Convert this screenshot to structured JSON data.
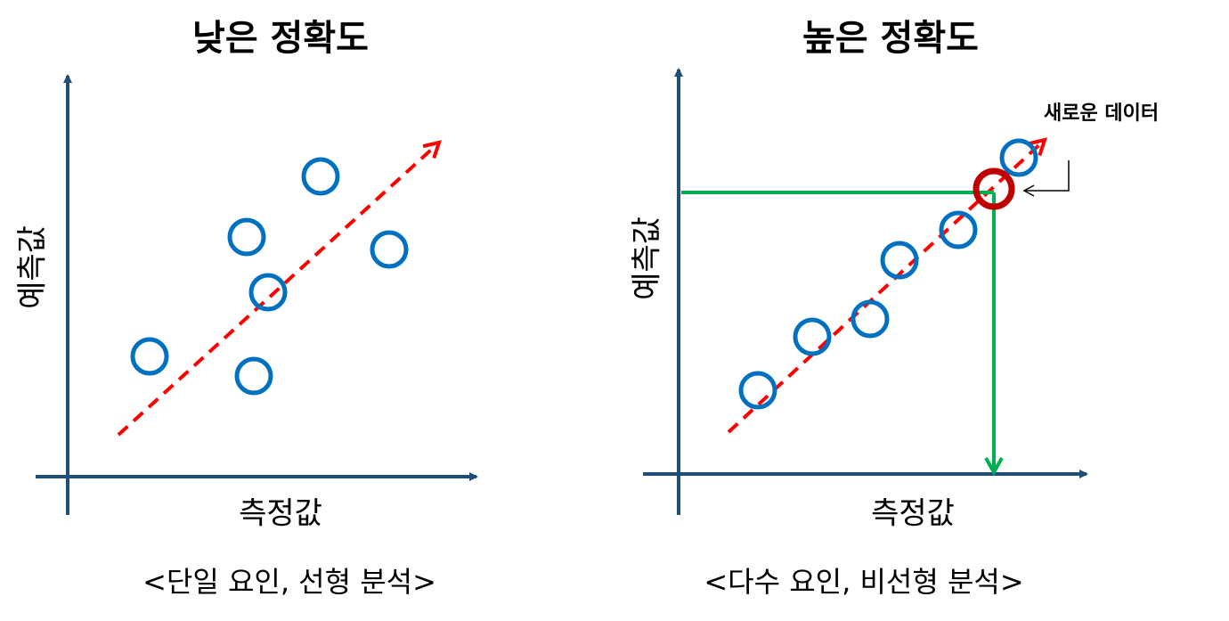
{
  "panels": [
    {
      "title": "낮은 정확도",
      "y_label": "예측값",
      "x_label": "측정값",
      "caption": "<단일 요인, 선형 분석>"
    },
    {
      "title": "높은 정확도",
      "y_label": "예측값",
      "x_label": "측정값",
      "caption": "<다수 요인, 비선형 분석>",
      "annotation": "새로운 데이터"
    }
  ]
}
